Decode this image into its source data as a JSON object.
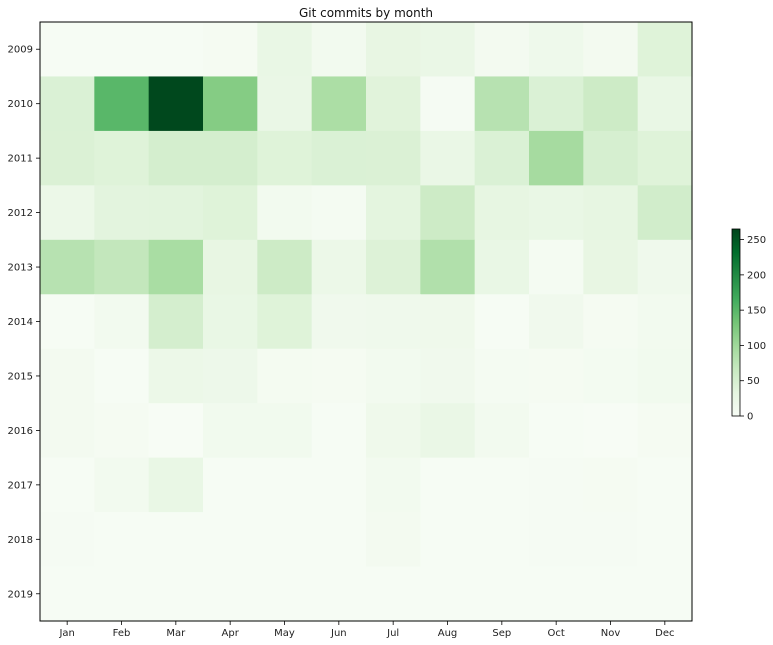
{
  "chart_data": {
    "type": "heatmap",
    "title": "Git commits by month",
    "x_categories": [
      "Jan",
      "Feb",
      "Mar",
      "Apr",
      "May",
      "Jun",
      "Jul",
      "Aug",
      "Sep",
      "Oct",
      "Nov",
      "Dec"
    ],
    "y_categories": [
      "2009",
      "2010",
      "2011",
      "2012",
      "2013",
      "2014",
      "2015",
      "2016",
      "2017",
      "2018",
      "2019"
    ],
    "values": [
      [
        2,
        2,
        2,
        4,
        25,
        10,
        28,
        24,
        8,
        16,
        8,
        40
      ],
      [
        45,
        150,
        262,
        120,
        24,
        90,
        38,
        3,
        80,
        45,
        60,
        25
      ],
      [
        44,
        40,
        52,
        52,
        40,
        45,
        44,
        24,
        45,
        95,
        50,
        40
      ],
      [
        20,
        35,
        36,
        40,
        10,
        5,
        34,
        60,
        30,
        25,
        30,
        55
      ],
      [
        80,
        70,
        92,
        28,
        60,
        20,
        42,
        85,
        25,
        5,
        28,
        14
      ],
      [
        2,
        9,
        52,
        25,
        40,
        12,
        14,
        15,
        2,
        12,
        4,
        9
      ],
      [
        8,
        1,
        20,
        18,
        6,
        4,
        10,
        12,
        5,
        4,
        7,
        11
      ],
      [
        8,
        4,
        0,
        11,
        11,
        1,
        15,
        24,
        10,
        1,
        0,
        4
      ],
      [
        2,
        9,
        25,
        1,
        1,
        2,
        10,
        2,
        1,
        3,
        4,
        2
      ],
      [
        3,
        1,
        1,
        1,
        1,
        1,
        8,
        1,
        1,
        3,
        3,
        1
      ],
      [
        1,
        1,
        1,
        1,
        1,
        1,
        1,
        1,
        1,
        1,
        1,
        1
      ]
    ],
    "colorbar": {
      "min": 0,
      "max": 265,
      "ticks": [
        "0",
        "50",
        "100",
        "150",
        "200",
        "250"
      ],
      "tick_values": [
        0,
        50,
        100,
        150,
        200,
        250
      ],
      "colormap": "Greens"
    },
    "grid": false
  }
}
